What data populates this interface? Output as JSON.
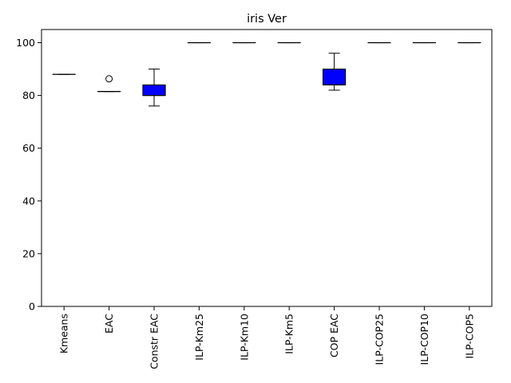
{
  "chart_data": {
    "type": "box",
    "title": "iris Ver",
    "xlabel": "",
    "ylabel": "",
    "ylim": [
      0,
      105
    ],
    "yticks": [
      0,
      20,
      40,
      60,
      80,
      100
    ],
    "grid": false,
    "legend": false,
    "box_fill": "#0000ff",
    "categories": [
      "Kmeans",
      "EAC",
      "Constr EAC",
      "ILP-Km25",
      "ILP-Km10",
      "ILP-Km5",
      "COP EAC",
      "ILP-COP25",
      "ILP-COP10",
      "ILP-COP5"
    ],
    "boxes": [
      {
        "label": "Kmeans",
        "whislo": 88,
        "q1": 88,
        "med": 88,
        "q3": 88,
        "whishi": 88,
        "fliers": []
      },
      {
        "label": "EAC",
        "whislo": 81.5,
        "q1": 81.5,
        "med": 81.5,
        "q3": 81.5,
        "whishi": 81.5,
        "fliers": [
          86.3
        ]
      },
      {
        "label": "Constr EAC",
        "whislo": 76,
        "q1": 80,
        "med": 80,
        "q3": 84,
        "whishi": 90,
        "fliers": []
      },
      {
        "label": "ILP-Km25",
        "whislo": 100,
        "q1": 100,
        "med": 100,
        "q3": 100,
        "whishi": 100,
        "fliers": []
      },
      {
        "label": "ILP-Km10",
        "whislo": 100,
        "q1": 100,
        "med": 100,
        "q3": 100,
        "whishi": 100,
        "fliers": []
      },
      {
        "label": "ILP-Km5",
        "whislo": 100,
        "q1": 100,
        "med": 100,
        "q3": 100,
        "whishi": 100,
        "fliers": []
      },
      {
        "label": "COP EAC",
        "whislo": 82,
        "q1": 84,
        "med": 84,
        "q3": 90,
        "whishi": 96,
        "fliers": []
      },
      {
        "label": "ILP-COP25",
        "whislo": 100,
        "q1": 100,
        "med": 100,
        "q3": 100,
        "whishi": 100,
        "fliers": []
      },
      {
        "label": "ILP-COP10",
        "whislo": 100,
        "q1": 100,
        "med": 100,
        "q3": 100,
        "whishi": 100,
        "fliers": []
      },
      {
        "label": "ILP-COP5",
        "whislo": 100,
        "q1": 100,
        "med": 100,
        "q3": 100,
        "whishi": 100,
        "fliers": []
      }
    ]
  }
}
